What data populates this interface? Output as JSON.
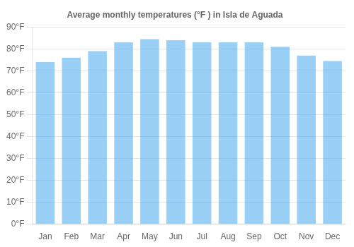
{
  "chart_data": {
    "type": "bar",
    "title": "Average monthly temperatures (°F ) in Isla de Aguada",
    "categories": [
      "Jan",
      "Feb",
      "Mar",
      "Apr",
      "May",
      "Jun",
      "Jul",
      "Aug",
      "Sep",
      "Oct",
      "Nov",
      "Dec"
    ],
    "values": [
      74,
      76,
      79,
      83,
      84.5,
      84,
      83,
      83,
      83,
      81,
      77,
      74.5
    ],
    "ylim": [
      0,
      90
    ],
    "yticks": [
      {
        "value": 0,
        "label": "0°F"
      },
      {
        "value": 10,
        "label": "10°F"
      },
      {
        "value": 20,
        "label": "20°F"
      },
      {
        "value": 30,
        "label": "30°F"
      },
      {
        "value": 40,
        "label": "40°F"
      },
      {
        "value": 50,
        "label": "50°F"
      },
      {
        "value": 60,
        "label": "60°F"
      },
      {
        "value": 70,
        "label": "70°F"
      },
      {
        "value": 80,
        "label": "80°F"
      },
      {
        "value": 90,
        "label": "90°F"
      }
    ],
    "grid": true
  }
}
